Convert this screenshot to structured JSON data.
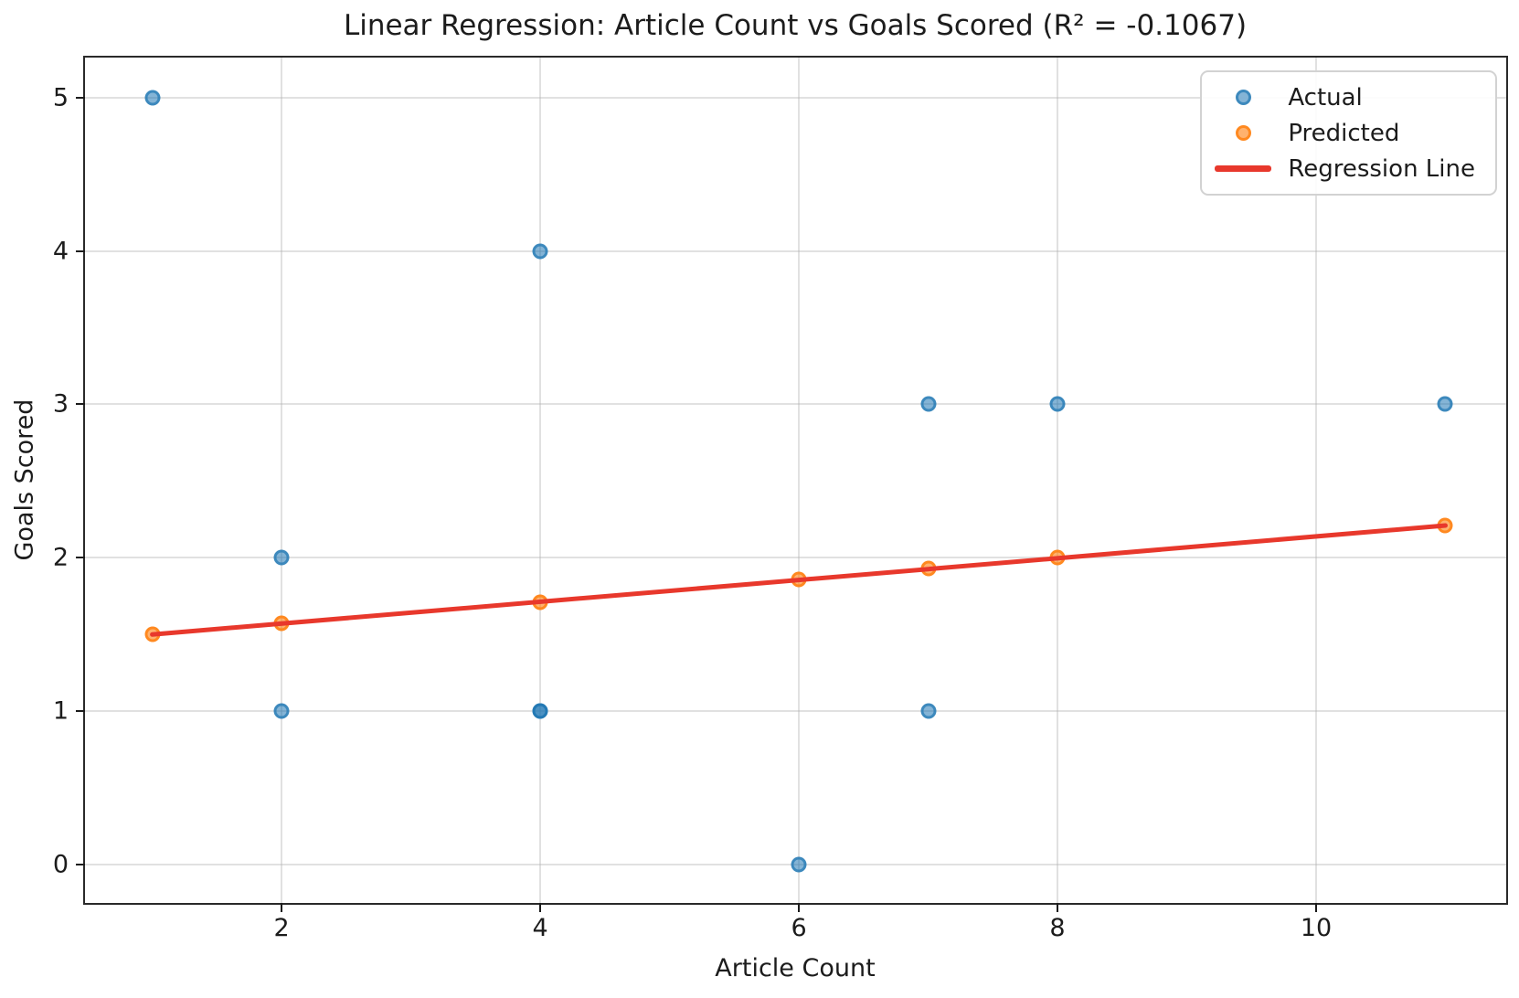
{
  "figure": {
    "background": "#ffffff"
  },
  "chart_data": {
    "type": "scatter",
    "title": "Linear Regression: Article Count vs Goals Scored (R² = -0.1067)",
    "r_squared": -0.1067,
    "xlabel": "Article Count",
    "ylabel": "Goals Scored",
    "xlim": [
      0.48,
      11.47
    ],
    "ylim": [
      -0.25,
      5.26
    ],
    "xticks": [
      2,
      4,
      6,
      8,
      10
    ],
    "yticks": [
      0,
      1,
      2,
      3,
      4,
      5
    ],
    "grid": true,
    "colors": {
      "actual": "#1f77b4",
      "predicted": "#ff7f0e",
      "regression_line": "#e8382c",
      "gridline": "#dcdcdc",
      "spine": "#2a2a2a",
      "text": "#1c1c1c"
    },
    "series": [
      {
        "name": "Actual",
        "type": "scatter",
        "color": "#1f77b4",
        "alpha": 0.55,
        "points": [
          [
            1,
            5
          ],
          [
            2,
            2
          ],
          [
            2,
            1
          ],
          [
            4,
            4
          ],
          [
            4,
            1
          ],
          [
            4,
            1
          ],
          [
            6,
            0
          ],
          [
            7,
            3
          ],
          [
            7,
            1
          ],
          [
            8,
            3
          ],
          [
            11,
            3
          ]
        ]
      },
      {
        "name": "Predicted",
        "type": "scatter",
        "color": "#ff7f0e",
        "alpha": 0.6,
        "points": [
          [
            1,
            1.5
          ],
          [
            2,
            1.57
          ],
          [
            4,
            1.71
          ],
          [
            6,
            1.86
          ],
          [
            7,
            1.93
          ],
          [
            8,
            2.0
          ],
          [
            11,
            2.21
          ]
        ]
      },
      {
        "name": "Regression Line",
        "type": "line",
        "color": "#e8382c",
        "points": [
          [
            1,
            1.5
          ],
          [
            11,
            2.21
          ]
        ]
      }
    ],
    "legend": {
      "position": "upper right",
      "entries": [
        {
          "label": "Actual",
          "marker": "dot",
          "color": "#1f77b4"
        },
        {
          "label": "Predicted",
          "marker": "dot",
          "color": "#ff7f0e"
        },
        {
          "label": "Regression Line",
          "marker": "line",
          "color": "#e8382c"
        }
      ]
    }
  }
}
